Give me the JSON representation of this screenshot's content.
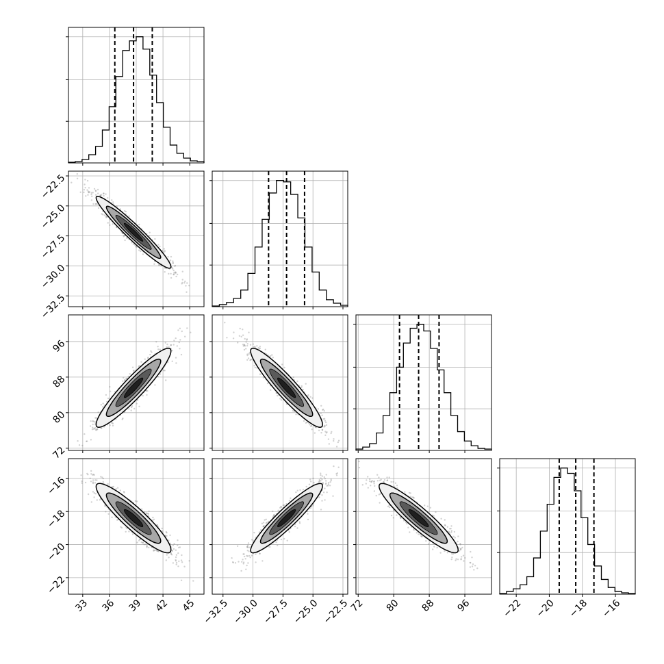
{
  "chart_data": {
    "type": "corner",
    "parameters": [
      {
        "ticks": [
          "33",
          "36",
          "39",
          "42",
          "45"
        ],
        "tick_values": [
          33,
          36,
          39,
          42,
          45
        ],
        "range": [
          31.4,
          46.6
        ],
        "quantiles": [
          36.6,
          38.7,
          40.8
        ],
        "histogram": [
          0.5,
          1,
          2.5,
          6,
          12,
          24,
          41,
          63,
          82,
          89,
          92,
          83,
          64,
          44,
          26,
          13,
          7,
          3.5,
          1.5,
          1
        ]
      },
      {
        "ticks": [
          "−32.5",
          "−30.0",
          "−27.5",
          "−25.0",
          "−22.5"
        ],
        "tick_values": [
          -32.5,
          -30.0,
          -27.5,
          -25.0,
          -22.5
        ],
        "range": [
          -33.4,
          -22.1
        ],
        "quantiles": [
          -28.7,
          -27.2,
          -25.7
        ],
        "histogram": [
          0.5,
          1.5,
          3,
          6,
          12,
          24,
          43,
          63,
          82,
          91,
          90,
          81,
          64,
          43,
          25,
          12,
          5,
          2.5,
          1
        ]
      },
      {
        "ticks": [
          "72",
          "80",
          "88",
          "96"
        ],
        "tick_values": [
          72,
          80,
          88,
          96
        ],
        "range": [
          71.5,
          102.0
        ],
        "quantiles": [
          81.3,
          85.6,
          90.2
        ],
        "histogram": [
          1,
          2.5,
          5,
          13,
          26,
          43,
          62,
          80,
          91,
          94,
          89,
          76,
          60,
          43,
          26,
          14,
          7,
          3.5,
          1.5,
          1
        ]
      },
      {
        "ticks": [
          "−22",
          "−20",
          "−18",
          "−16"
        ],
        "tick_values": [
          -22,
          -20,
          -18,
          -16
        ],
        "range": [
          -23.0,
          -14.8
        ],
        "quantiles": [
          -19.4,
          -18.4,
          -17.3
        ],
        "histogram": [
          0.5,
          2,
          4,
          7,
          13,
          27,
          47,
          67,
          87,
          94,
          90,
          77,
          57,
          37,
          21,
          11,
          5,
          2,
          1,
          0.5
        ]
      }
    ],
    "correlations": [
      [
        1,
        -0.96,
        0.93,
        -0.91
      ],
      [
        -0.96,
        1,
        -0.93,
        0.93
      ],
      [
        0.93,
        -0.93,
        1,
        -0.92
      ],
      [
        -0.91,
        0.93,
        -0.92,
        1
      ]
    ],
    "grid": true,
    "colors": {
      "line": "#000000",
      "grid": "#b0b0b0",
      "points": "#7f7f7f"
    }
  }
}
